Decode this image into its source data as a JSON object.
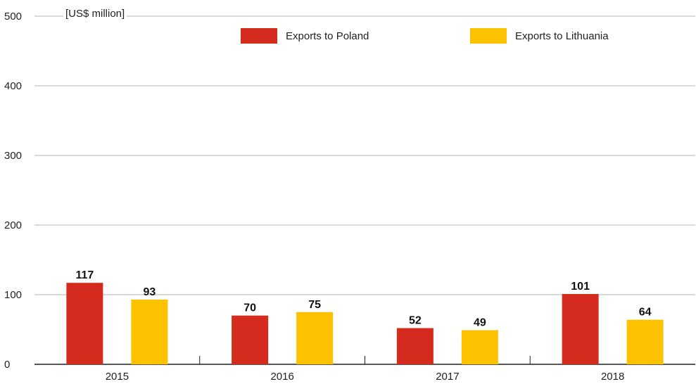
{
  "chart_data": {
    "type": "bar",
    "categories": [
      "2015",
      "2016",
      "2017",
      "2018"
    ],
    "series": [
      {
        "name": "Exports to Poland",
        "values": [
          117,
          70,
          52,
          101
        ],
        "color": "#d52b1e"
      },
      {
        "name": "Exports to Lithuania",
        "values": [
          93,
          75,
          49,
          64
        ],
        "color": "#fcc200"
      }
    ],
    "ylabel": "[US$ million]",
    "xlabel": "",
    "ylim": [
      0,
      500
    ],
    "yticks": [
      0,
      100,
      200,
      300,
      400,
      500
    ],
    "grid": true,
    "legend_position": "top-center"
  }
}
